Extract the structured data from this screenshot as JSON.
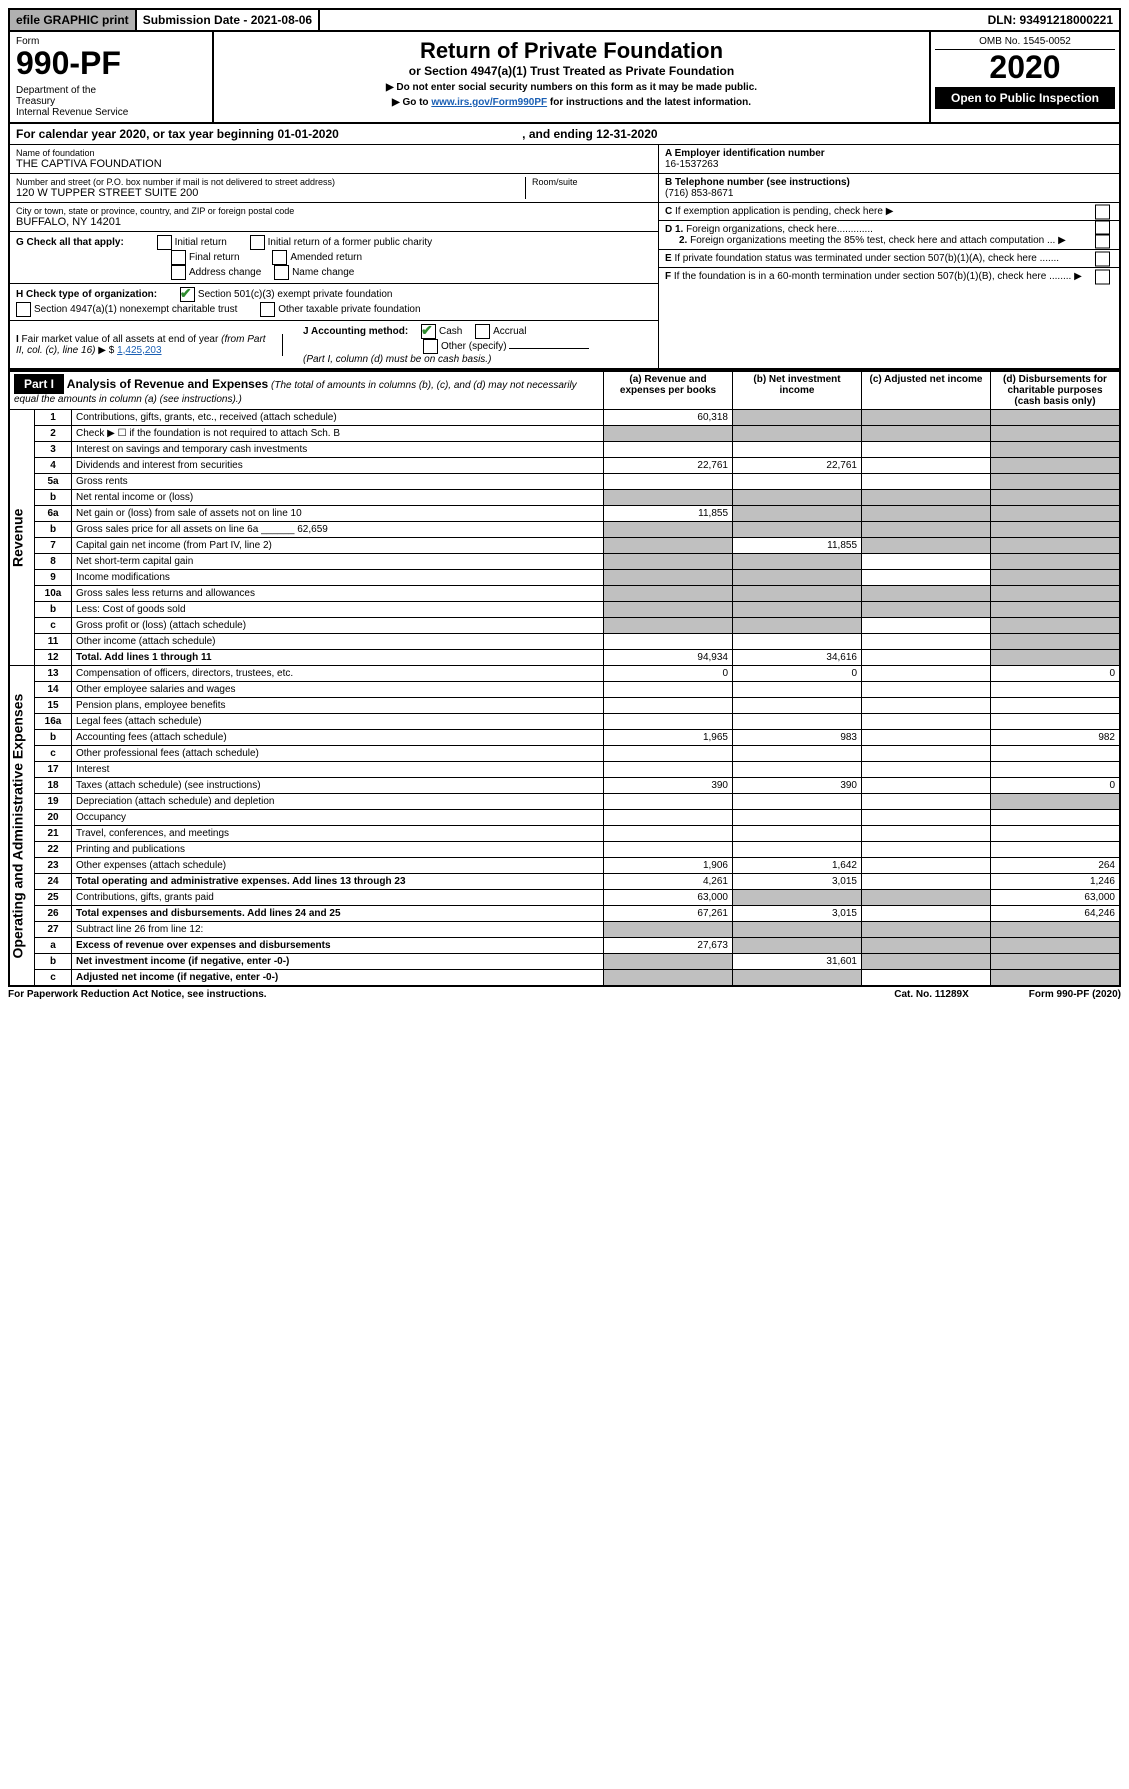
{
  "topbar": {
    "efile": "efile GRAPHIC print",
    "subdate_lbl": "Submission Date - 2021-08-06",
    "dln": "DLN: 93491218000221"
  },
  "header": {
    "form_word": "Form",
    "form_num": "990-PF",
    "dept": "Department of the Treasury\nInternal Revenue Service",
    "title": "Return of Private Foundation",
    "subtitle": "or Section 4947(a)(1) Trust Treated as Private Foundation",
    "note1": "▶ Do not enter social security numbers on this form as it may be made public.",
    "note2_pre": "▶ Go to ",
    "note2_link": "www.irs.gov/Form990PF",
    "note2_post": " for instructions and the latest information.",
    "omb": "OMB No. 1545-0052",
    "year": "2020",
    "open": "Open to Public Inspection"
  },
  "cal": {
    "text": "For calendar year 2020, or tax year beginning 01-01-2020",
    "ending": ", and ending 12-31-2020"
  },
  "left": {
    "name_lbl": "Name of foundation",
    "name": "THE CAPTIVA FOUNDATION",
    "addr_lbl": "Number and street (or P.O. box number if mail is not delivered to street address)",
    "addr": "120 W TUPPER STREET SUITE 200",
    "room_lbl": "Room/suite",
    "city_lbl": "City or town, state or province, country, and ZIP or foreign postal code",
    "city": "BUFFALO, NY  14201",
    "g_lbl": "G Check all that apply:",
    "g_items": [
      "Initial return",
      "Initial return of a former public charity",
      "Final return",
      "Amended return",
      "Address change",
      "Name change"
    ],
    "h_lbl": "H Check type of organization:",
    "h1": "Section 501(c)(3) exempt private foundation",
    "h2": "Section 4947(a)(1) nonexempt charitable trust",
    "h3": "Other taxable private foundation",
    "i_lbl": "I Fair market value of all assets at end of year (from Part II, col. (c), line 16) ▶ $ ",
    "i_val": "1,425,203",
    "j_lbl": "J Accounting method:",
    "j_cash": "Cash",
    "j_accr": "Accrual",
    "j_other": "Other (specify)",
    "j_note": "(Part I, column (d) must be on cash basis.)"
  },
  "right": {
    "a_lbl": "A Employer identification number",
    "a_val": "16-1537263",
    "b_lbl": "B Telephone number (see instructions)",
    "b_val": "(716) 853-8671",
    "c_lbl": "C  If exemption application is pending, check here ▶",
    "d1": "D 1. Foreign organizations, check here.............",
    "d2": "2. Foreign organizations meeting the 85% test, check here and attach computation ...",
    "e_lbl": "E  If private foundation status was terminated under section 507(b)(1)(A), check here .......",
    "f_lbl": "F  If the foundation is in a 60-month termination under section 507(b)(1)(B), check here ........"
  },
  "part1": {
    "label": "Part I",
    "title": "Analysis of Revenue and Expenses",
    "title_note": "(The total of amounts in columns (b), (c), and (d) may not necessarily equal the amounts in column (a) (see instructions).)",
    "cols": {
      "a": "(a) Revenue and expenses per books",
      "b": "(b) Net investment income",
      "c": "(c) Adjusted net income",
      "d": "(d) Disbursements for charitable purposes (cash basis only)"
    },
    "side_rev": "Revenue",
    "side_exp": "Operating and Administrative Expenses"
  },
  "rows": [
    {
      "n": "1",
      "t": "Contributions, gifts, grants, etc., received (attach schedule)",
      "a": "60,318",
      "b": "",
      "c": "",
      "d": "",
      "sb": true,
      "sc": true,
      "sd": true
    },
    {
      "n": "2",
      "t": "Check ▶ ☐  if the foundation is not required to attach Sch. B",
      "a": "",
      "b": "",
      "c": "",
      "d": "",
      "sa": true,
      "sb": true,
      "sc": true,
      "sd": true
    },
    {
      "n": "3",
      "t": "Interest on savings and temporary cash investments",
      "a": "",
      "b": "",
      "c": "",
      "d": "",
      "sd": true
    },
    {
      "n": "4",
      "t": "Dividends and interest from securities",
      "a": "22,761",
      "b": "22,761",
      "c": "",
      "d": "",
      "sd": true
    },
    {
      "n": "5a",
      "t": "Gross rents",
      "a": "",
      "b": "",
      "c": "",
      "d": "",
      "sd": true
    },
    {
      "n": "b",
      "t": "Net rental income or (loss)",
      "a": "",
      "b": "",
      "c": "",
      "d": "",
      "sa": true,
      "sb": true,
      "sc": true,
      "sd": true
    },
    {
      "n": "6a",
      "t": "Net gain or (loss) from sale of assets not on line 10",
      "a": "11,855",
      "b": "",
      "c": "",
      "d": "",
      "sb": true,
      "sc": true,
      "sd": true
    },
    {
      "n": "b",
      "t": "Gross sales price for all assets on line 6a ______ 62,659",
      "a": "",
      "b": "",
      "c": "",
      "d": "",
      "sa": true,
      "sb": true,
      "sc": true,
      "sd": true
    },
    {
      "n": "7",
      "t": "Capital gain net income (from Part IV, line 2)",
      "a": "",
      "b": "11,855",
      "c": "",
      "d": "",
      "sa": true,
      "sc": true,
      "sd": true
    },
    {
      "n": "8",
      "t": "Net short-term capital gain",
      "a": "",
      "b": "",
      "c": "",
      "d": "",
      "sa": true,
      "sb": true,
      "sd": true
    },
    {
      "n": "9",
      "t": "Income modifications",
      "a": "",
      "b": "",
      "c": "",
      "d": "",
      "sa": true,
      "sb": true,
      "sd": true
    },
    {
      "n": "10a",
      "t": "Gross sales less returns and allowances",
      "a": "",
      "b": "",
      "c": "",
      "d": "",
      "sa": true,
      "sb": true,
      "sc": true,
      "sd": true
    },
    {
      "n": "b",
      "t": "Less: Cost of goods sold",
      "a": "",
      "b": "",
      "c": "",
      "d": "",
      "sa": true,
      "sb": true,
      "sc": true,
      "sd": true
    },
    {
      "n": "c",
      "t": "Gross profit or (loss) (attach schedule)",
      "a": "",
      "b": "",
      "c": "",
      "d": "",
      "sa": true,
      "sb": true,
      "sd": true
    },
    {
      "n": "11",
      "t": "Other income (attach schedule)",
      "a": "",
      "b": "",
      "c": "",
      "d": "",
      "sd": true
    },
    {
      "n": "12",
      "t": "Total. Add lines 1 through 11",
      "a": "94,934",
      "b": "34,616",
      "c": "",
      "d": "",
      "bold": true,
      "sd": true
    },
    {
      "n": "13",
      "t": "Compensation of officers, directors, trustees, etc.",
      "a": "0",
      "b": "0",
      "c": "",
      "d": "0"
    },
    {
      "n": "14",
      "t": "Other employee salaries and wages",
      "a": "",
      "b": "",
      "c": "",
      "d": ""
    },
    {
      "n": "15",
      "t": "Pension plans, employee benefits",
      "a": "",
      "b": "",
      "c": "",
      "d": ""
    },
    {
      "n": "16a",
      "t": "Legal fees (attach schedule)",
      "a": "",
      "b": "",
      "c": "",
      "d": ""
    },
    {
      "n": "b",
      "t": "Accounting fees (attach schedule)",
      "a": "1,965",
      "b": "983",
      "c": "",
      "d": "982"
    },
    {
      "n": "c",
      "t": "Other professional fees (attach schedule)",
      "a": "",
      "b": "",
      "c": "",
      "d": ""
    },
    {
      "n": "17",
      "t": "Interest",
      "a": "",
      "b": "",
      "c": "",
      "d": ""
    },
    {
      "n": "18",
      "t": "Taxes (attach schedule) (see instructions)",
      "a": "390",
      "b": "390",
      "c": "",
      "d": "0"
    },
    {
      "n": "19",
      "t": "Depreciation (attach schedule) and depletion",
      "a": "",
      "b": "",
      "c": "",
      "d": "",
      "sd": true
    },
    {
      "n": "20",
      "t": "Occupancy",
      "a": "",
      "b": "",
      "c": "",
      "d": ""
    },
    {
      "n": "21",
      "t": "Travel, conferences, and meetings",
      "a": "",
      "b": "",
      "c": "",
      "d": ""
    },
    {
      "n": "22",
      "t": "Printing and publications",
      "a": "",
      "b": "",
      "c": "",
      "d": ""
    },
    {
      "n": "23",
      "t": "Other expenses (attach schedule)",
      "a": "1,906",
      "b": "1,642",
      "c": "",
      "d": "264"
    },
    {
      "n": "24",
      "t": "Total operating and administrative expenses. Add lines 13 through 23",
      "a": "4,261",
      "b": "3,015",
      "c": "",
      "d": "1,246",
      "bold": true
    },
    {
      "n": "25",
      "t": "Contributions, gifts, grants paid",
      "a": "63,000",
      "b": "",
      "c": "",
      "d": "63,000",
      "sb": true,
      "sc": true
    },
    {
      "n": "26",
      "t": "Total expenses and disbursements. Add lines 24 and 25",
      "a": "67,261",
      "b": "3,015",
      "c": "",
      "d": "64,246",
      "bold": true
    },
    {
      "n": "27",
      "t": "Subtract line 26 from line 12:",
      "a": "",
      "b": "",
      "c": "",
      "d": "",
      "sa": true,
      "sb": true,
      "sc": true,
      "sd": true
    },
    {
      "n": "a",
      "t": "Excess of revenue over expenses and disbursements",
      "a": "27,673",
      "b": "",
      "c": "",
      "d": "",
      "bold": true,
      "sb": true,
      "sc": true,
      "sd": true
    },
    {
      "n": "b",
      "t": "Net investment income (if negative, enter -0-)",
      "a": "",
      "b": "31,601",
      "c": "",
      "d": "",
      "bold": true,
      "sa": true,
      "sc": true,
      "sd": true
    },
    {
      "n": "c",
      "t": "Adjusted net income (if negative, enter -0-)",
      "a": "",
      "b": "",
      "c": "",
      "d": "",
      "bold": true,
      "sa": true,
      "sb": true,
      "sd": true
    }
  ],
  "footer": {
    "left": "For Paperwork Reduction Act Notice, see instructions.",
    "mid": "Cat. No. 11289X",
    "right": "Form 990-PF (2020)"
  }
}
